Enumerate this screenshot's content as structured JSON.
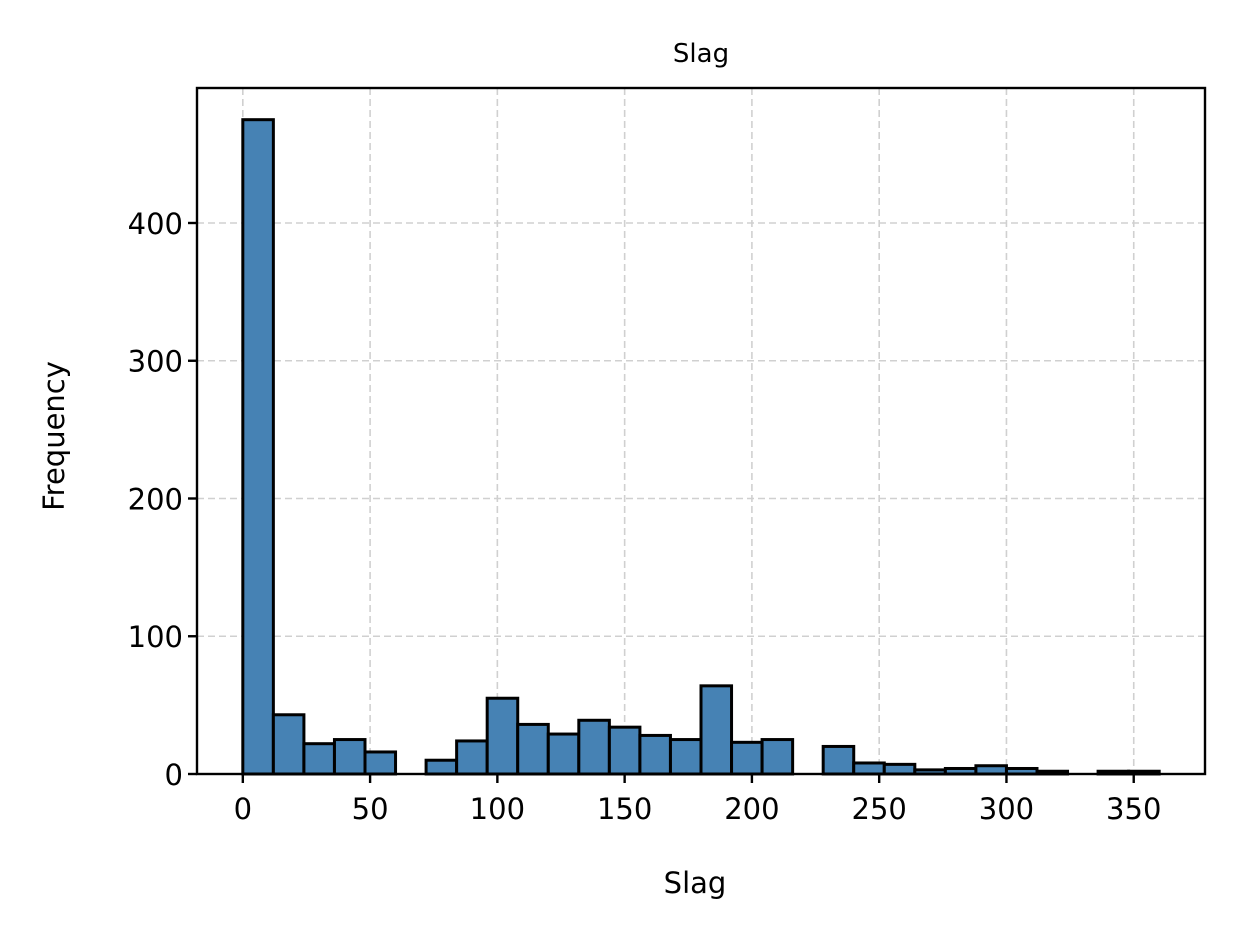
{
  "chart_data": {
    "type": "bar",
    "title": "Slag",
    "xlabel": "Slag",
    "ylabel": "Frequency",
    "xlim": [
      -18,
      378
    ],
    "ylim": [
      0,
      498
    ],
    "xticks": [
      0,
      50,
      100,
      150,
      200,
      250,
      300,
      350
    ],
    "yticks": [
      0,
      100,
      200,
      300,
      400
    ],
    "grid": true,
    "bar_color": "#4682b4",
    "edge_color": "#000000",
    "bin_width": 12,
    "bins": [
      {
        "x0": 0,
        "x1": 12,
        "value": 475
      },
      {
        "x0": 12,
        "x1": 24,
        "value": 43
      },
      {
        "x0": 24,
        "x1": 36,
        "value": 22
      },
      {
        "x0": 36,
        "x1": 48,
        "value": 25
      },
      {
        "x0": 48,
        "x1": 60,
        "value": 16
      },
      {
        "x0": 60,
        "x1": 72,
        "value": 0
      },
      {
        "x0": 72,
        "x1": 84,
        "value": 10
      },
      {
        "x0": 84,
        "x1": 96,
        "value": 24
      },
      {
        "x0": 96,
        "x1": 108,
        "value": 55
      },
      {
        "x0": 108,
        "x1": 120,
        "value": 36
      },
      {
        "x0": 120,
        "x1": 132,
        "value": 29
      },
      {
        "x0": 132,
        "x1": 144,
        "value": 39
      },
      {
        "x0": 144,
        "x1": 156,
        "value": 34
      },
      {
        "x0": 156,
        "x1": 168,
        "value": 28
      },
      {
        "x0": 168,
        "x1": 180,
        "value": 25
      },
      {
        "x0": 180,
        "x1": 192,
        "value": 64
      },
      {
        "x0": 192,
        "x1": 204,
        "value": 23
      },
      {
        "x0": 204,
        "x1": 216,
        "value": 25
      },
      {
        "x0": 216,
        "x1": 228,
        "value": 0
      },
      {
        "x0": 228,
        "x1": 240,
        "value": 20
      },
      {
        "x0": 240,
        "x1": 252,
        "value": 8
      },
      {
        "x0": 252,
        "x1": 264,
        "value": 7
      },
      {
        "x0": 264,
        "x1": 276,
        "value": 3
      },
      {
        "x0": 276,
        "x1": 288,
        "value": 4
      },
      {
        "x0": 288,
        "x1": 300,
        "value": 6
      },
      {
        "x0": 300,
        "x1": 312,
        "value": 4
      },
      {
        "x0": 312,
        "x1": 324,
        "value": 2
      },
      {
        "x0": 324,
        "x1": 336,
        "value": 0
      },
      {
        "x0": 336,
        "x1": 348,
        "value": 2
      },
      {
        "x0": 348,
        "x1": 360,
        "value": 2
      }
    ],
    "reference_line_x": 0
  }
}
